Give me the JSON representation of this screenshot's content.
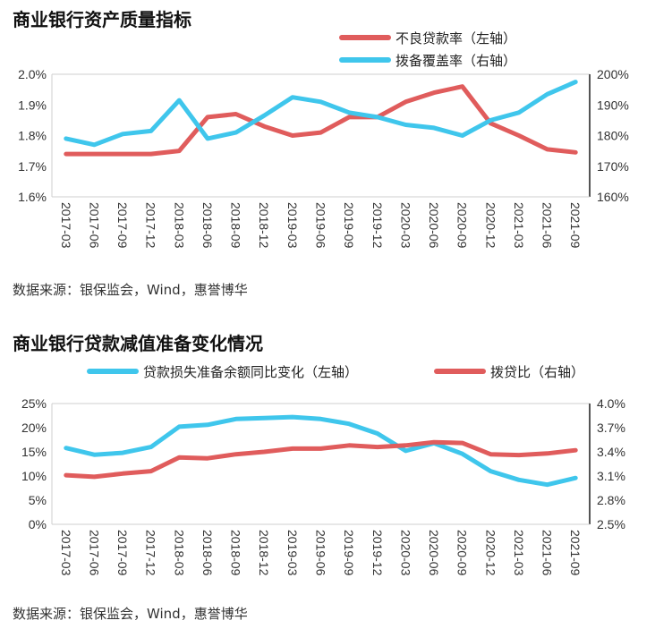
{
  "charts": [
    {
      "title": "商业银行资产质量指标",
      "source": "数据来源：银保监会，Wind，惠誉博华"
    },
    {
      "title": "商业银行贷款减值准备变化情况",
      "source": "数据来源：银保监会，Wind，惠誉博华"
    }
  ],
  "colors": {
    "red": "#e05c5c",
    "blue": "#3fc6ec"
  },
  "chart_data": [
    {
      "type": "line",
      "title": "商业银行资产质量指标",
      "x": [
        "2017-03",
        "2017-06",
        "2017-09",
        "2017-12",
        "2018-03",
        "2018-06",
        "2018-09",
        "2018-12",
        "2019-03",
        "2019-06",
        "2019-09",
        "2019-12",
        "2020-03",
        "2020-06",
        "2020-09",
        "2020-12",
        "2021-03",
        "2021-06",
        "2021-09"
      ],
      "left_axis": {
        "ticks": [
          "1.6%",
          "1.7%",
          "1.8%",
          "1.9%",
          "2.0%"
        ],
        "min": 1.6,
        "max": 2.0
      },
      "right_axis": {
        "ticks": [
          "160%",
          "170%",
          "180%",
          "190%",
          "200%"
        ],
        "min": 160,
        "max": 200
      },
      "series": [
        {
          "name": "不良贷款率（左轴）",
          "axis": "left",
          "color": "#e05c5c",
          "values": [
            1.74,
            1.74,
            1.74,
            1.74,
            1.75,
            1.86,
            1.87,
            1.83,
            1.8,
            1.81,
            1.86,
            1.86,
            1.91,
            1.94,
            1.96,
            1.84,
            1.8,
            1.755,
            1.745
          ]
        },
        {
          "name": "拨备覆盖率（右轴）",
          "axis": "right",
          "color": "#3fc6ec",
          "values": [
            179,
            177,
            180.5,
            181.5,
            191.5,
            179,
            181,
            186.5,
            192.5,
            191,
            187.5,
            186,
            183.5,
            182.5,
            180,
            185,
            187.5,
            193.5,
            197.5
          ]
        }
      ],
      "legend_position": "top-right"
    },
    {
      "type": "line",
      "title": "商业银行贷款减值准备变化情况",
      "x": [
        "2017-03",
        "2017-06",
        "2017-09",
        "2017-12",
        "2018-03",
        "2018-06",
        "2018-09",
        "2018-12",
        "2019-03",
        "2019-06",
        "2019-09",
        "2019-12",
        "2020-03",
        "2020-06",
        "2020-09",
        "2020-12",
        "2021-03",
        "2021-06",
        "2021-09"
      ],
      "left_axis": {
        "ticks": [
          "0%",
          "5%",
          "10%",
          "15%",
          "20%",
          "25%"
        ],
        "min": 0,
        "max": 25
      },
      "right_axis": {
        "ticks": [
          "2.5%",
          "2.8%",
          "3.1%",
          "3.4%",
          "3.7%",
          "4.0%"
        ],
        "min": 2.5,
        "max": 4.0
      },
      "series": [
        {
          "name": "贷款损失准备余额同比变化（左轴）",
          "axis": "left",
          "color": "#3fc6ec",
          "values": [
            15.8,
            14.4,
            14.8,
            16,
            20.2,
            20.6,
            21.8,
            22,
            22.2,
            21.8,
            20.8,
            18.8,
            15.2,
            16.8,
            14.6,
            11,
            9.2,
            8.2,
            9.6
          ]
        },
        {
          "name": "拨贷比（右轴）",
          "axis": "right",
          "color": "#e05c5c",
          "values": [
            3.11,
            3.09,
            3.13,
            3.16,
            3.33,
            3.32,
            3.37,
            3.4,
            3.44,
            3.44,
            3.48,
            3.46,
            3.48,
            3.52,
            3.51,
            3.37,
            3.36,
            3.38,
            3.42
          ]
        }
      ],
      "legend_position": "top"
    }
  ]
}
